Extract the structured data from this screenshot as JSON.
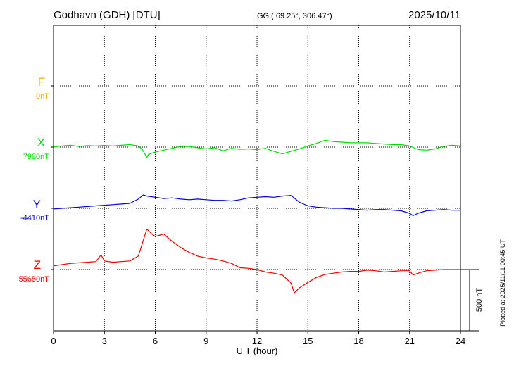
{
  "header": {
    "station": "Godhavn (GDH)  [DTU]",
    "coords": "GG ( 69.25°, 306.47°)",
    "date": "2025/10/11"
  },
  "footer": {
    "plotted": "Plotted at 2025/11/11 00:45 UT"
  },
  "chart_data": {
    "type": "line",
    "title": "Godhavn (GDH)  [DTU]",
    "xlabel": "U T (hour)",
    "ylabel": "",
    "xlim": [
      0,
      24
    ],
    "x_ticks": [
      0,
      3,
      6,
      9,
      12,
      15,
      18,
      21,
      24
    ],
    "tick_labels": [
      "0",
      "3",
      "6",
      "9",
      "12",
      "15",
      "18",
      "21",
      "24"
    ],
    "grid": true,
    "scale_bar": {
      "label": "500 nT",
      "value_nT": 500
    },
    "series": [
      {
        "name": "F",
        "baseline_label": "0nT",
        "color": "#f0b400",
        "x": [],
        "values": []
      },
      {
        "name": "X",
        "baseline_label": "7980nT",
        "color": "#00dd00",
        "x": [
          0,
          0.5,
          1,
          1.5,
          2,
          2.5,
          3,
          3.5,
          4,
          4.5,
          5,
          5.25,
          5.4,
          5.5,
          5.6,
          6,
          6.5,
          7,
          7.5,
          8,
          8.5,
          9,
          9.5,
          10,
          10.5,
          11,
          11.5,
          12,
          12.5,
          13,
          13.5,
          14,
          14.5,
          15,
          15.5,
          16,
          16.5,
          17,
          17.5,
          18,
          18.5,
          19,
          19.5,
          20,
          20.5,
          21,
          21.5,
          22,
          22.5,
          23,
          23.5,
          24
        ],
        "values": [
          7980,
          7990,
          7995,
          7985,
          7992,
          7990,
          7994,
          7990,
          7995,
          8000,
          7990,
          7960,
          7920,
          7895,
          7920,
          7940,
          7955,
          7970,
          7985,
          7985,
          7975,
          7965,
          7975,
          7950,
          7970,
          7962,
          7965,
          7960,
          7970,
          7945,
          7925,
          7945,
          7965,
          7990,
          8010,
          8035,
          8025,
          8020,
          8015,
          8015,
          8015,
          8010,
          8005,
          8000,
          8000,
          7990,
          7960,
          7955,
          7965,
          7985,
          7995,
          7990
        ]
      },
      {
        "name": "Y",
        "baseline_label": "-4410nT",
        "color": "#0000e0",
        "x": [
          0,
          0.5,
          1,
          1.5,
          2,
          2.5,
          3,
          3.5,
          4,
          4.5,
          5,
          5.3,
          5.5,
          6,
          6.5,
          7,
          7.5,
          8,
          8.5,
          9,
          9.5,
          10,
          10.5,
          11,
          11.5,
          12,
          12.5,
          13,
          13.5,
          14,
          14.5,
          15,
          15.5,
          16,
          16.5,
          17,
          17.5,
          18,
          18.5,
          19,
          19.5,
          20,
          20.5,
          21,
          21.2,
          21.5,
          22,
          22.5,
          23,
          23.5,
          24
        ],
        "values": [
          -4415,
          -4410,
          -4405,
          -4400,
          -4395,
          -4390,
          -4385,
          -4380,
          -4375,
          -4370,
          -4335,
          -4300,
          -4310,
          -4320,
          -4330,
          -4325,
          -4335,
          -4340,
          -4335,
          -4340,
          -4345,
          -4345,
          -4350,
          -4340,
          -4325,
          -4320,
          -4315,
          -4320,
          -4310,
          -4305,
          -4360,
          -4390,
          -4400,
          -4405,
          -4410,
          -4410,
          -4415,
          -4420,
          -4425,
          -4420,
          -4420,
          -4425,
          -4430,
          -4450,
          -4470,
          -4450,
          -4430,
          -4425,
          -4420,
          -4425,
          -4425
        ]
      },
      {
        "name": "Z",
        "baseline_label": "55650nT",
        "color": "#ee0000",
        "x": [
          0,
          0.5,
          1,
          1.5,
          2,
          2.5,
          2.8,
          3,
          3.5,
          4,
          4.5,
          5,
          5.3,
          5.5,
          5.8,
          6,
          6.5,
          7,
          7.5,
          8,
          8.5,
          9,
          9.5,
          10,
          10.5,
          11,
          11.5,
          12,
          12.5,
          13,
          13.5,
          14,
          14.2,
          14.5,
          15,
          15.5,
          16,
          16.5,
          17,
          17.5,
          18,
          18.5,
          19,
          19.5,
          20,
          20.5,
          21,
          21.2,
          21.5,
          22,
          22.5,
          23,
          23.5,
          24
        ],
        "values": [
          55680,
          55690,
          55700,
          55705,
          55710,
          55715,
          55770,
          55720,
          55710,
          55715,
          55720,
          55760,
          55890,
          55980,
          55940,
          55920,
          55940,
          55880,
          55830,
          55790,
          55760,
          55745,
          55735,
          55720,
          55700,
          55665,
          55660,
          55650,
          55630,
          55620,
          55605,
          55540,
          55460,
          55500,
          55545,
          55585,
          55610,
          55620,
          55630,
          55635,
          55635,
          55645,
          55640,
          55630,
          55635,
          55640,
          55640,
          55605,
          55620,
          55640,
          55645,
          55650,
          55650,
          55650
        ]
      }
    ]
  }
}
